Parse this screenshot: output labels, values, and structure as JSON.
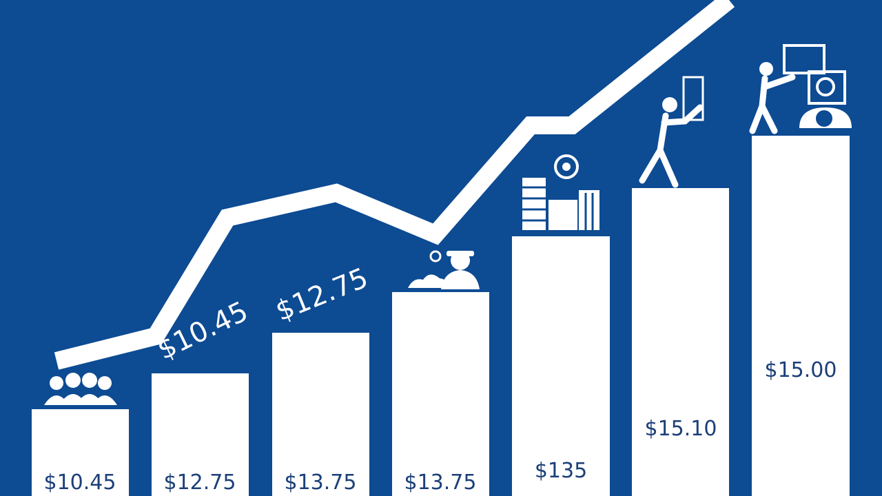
{
  "bars": [
    {
      "label": "$10.45"
    },
    {
      "label": "$12.75"
    },
    {
      "label": "$13.75"
    },
    {
      "label": "$13.75"
    },
    {
      "label": "$135"
    },
    {
      "label": "$15.10"
    },
    {
      "label": "$15.00"
    }
  ],
  "callouts": [
    "$10.45",
    "$12.75"
  ]
}
